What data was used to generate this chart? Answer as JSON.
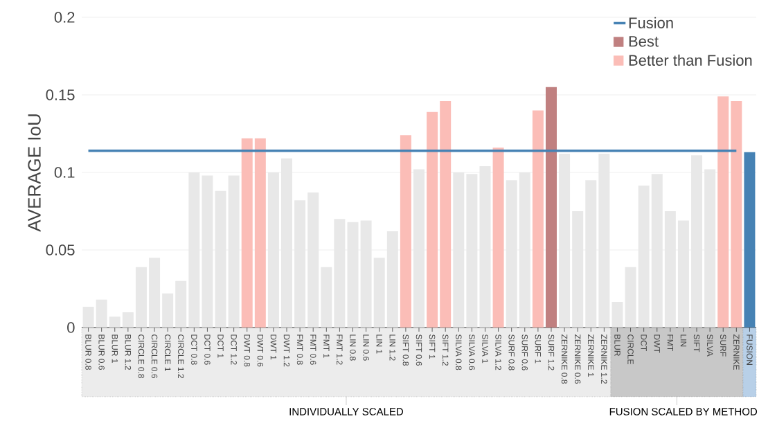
{
  "chart_data": {
    "type": "bar",
    "ylabel": "AVERAGE IoU",
    "categories": [
      "BLUR 0.8",
      "BLUR 0.6",
      "BLUR 1",
      "BLUR 1.2",
      "CIRCLE 0.8",
      "CIRCLE 0.6",
      "CIRCLE 1",
      "CIRCLE 1.2",
      "DCT 0.8",
      "DCT 0.6",
      "DCT 1",
      "DCT 1.2",
      "DWT 0.8",
      "DWT 0.6",
      "DWT 1",
      "DWT 1.2",
      "FMT 0.8",
      "FMT 0.6",
      "FMT 1",
      "FMT 1.2",
      "LIN 0.8",
      "LIN 0.6",
      "LIN 1",
      "LIN 1.2",
      "SIFT 0.8",
      "SIFT 0.6",
      "SIFT 1",
      "SIFT 1.2",
      "SILVA 0.8",
      "SILVA 0.6",
      "SILVA 1",
      "SILVA 1.2",
      "SURF 0.8",
      "SURF 0.6",
      "SURF 1",
      "SURF 1.2",
      "ZERNIKE 0.8",
      "ZERNIKE 0.6",
      "ZERNIKE 1",
      "ZERNIKE 1.2",
      "BLUR",
      "CIRCLE",
      "DCT",
      "DWT",
      "FMT",
      "LIN",
      "SIFT",
      "SILVA",
      "SURF",
      "ZERNIKE",
      "FUSION"
    ],
    "series": [
      {
        "name": "Fusion",
        "type": "line",
        "color": "#4682b4",
        "values": [
          0.114,
          0.114,
          0.114,
          0.114,
          0.114,
          0.114,
          0.114,
          0.114,
          0.114,
          0.114,
          0.114,
          0.114,
          0.114,
          0.114,
          0.114,
          0.114,
          0.114,
          0.114,
          0.114,
          0.114,
          0.114,
          0.114,
          0.114,
          0.114,
          0.114,
          0.114,
          0.114,
          0.114,
          0.114,
          0.114,
          0.114,
          0.114,
          0.114,
          0.114,
          0.114,
          0.114,
          0.114,
          0.114,
          0.114,
          0.114,
          0.114,
          0.114,
          0.114,
          0.114,
          0.114,
          0.114,
          0.114,
          0.114,
          0.114,
          0.114,
          null
        ]
      },
      {
        "name": "Best",
        "color": "#c08080",
        "values": [
          null,
          null,
          null,
          null,
          null,
          null,
          null,
          null,
          null,
          null,
          null,
          null,
          null,
          null,
          null,
          null,
          null,
          null,
          null,
          null,
          null,
          null,
          null,
          null,
          null,
          null,
          null,
          null,
          null,
          null,
          null,
          null,
          null,
          null,
          null,
          0.155,
          null,
          null,
          null,
          null,
          null,
          null,
          null,
          null,
          null,
          null,
          null,
          null,
          null,
          null,
          null
        ]
      },
      {
        "name": "Better than Fusion",
        "color": "#fbbdb7",
        "values": [
          null,
          null,
          null,
          null,
          null,
          null,
          null,
          null,
          null,
          null,
          null,
          null,
          0.122,
          0.122,
          null,
          null,
          null,
          null,
          null,
          null,
          null,
          null,
          null,
          null,
          0.124,
          null,
          0.139,
          0.146,
          null,
          null,
          null,
          0.116,
          null,
          null,
          0.14,
          null,
          null,
          null,
          null,
          null,
          null,
          null,
          null,
          null,
          null,
          null,
          null,
          null,
          0.149,
          0.146,
          null
        ]
      },
      {
        "color": "#e8e8e8",
        "values": [
          0.0134,
          0.018,
          0.007,
          0.0098,
          0.039,
          0.045,
          0.022,
          0.03,
          0.1,
          0.098,
          0.088,
          0.098,
          null,
          null,
          0.1,
          0.109,
          0.082,
          0.087,
          0.039,
          0.07,
          0.068,
          0.069,
          0.045,
          0.062,
          null,
          0.102,
          null,
          null,
          0.1,
          0.099,
          0.104,
          null,
          0.095,
          0.1,
          null,
          null,
          0.112,
          0.075,
          0.095,
          0.112,
          0.0165,
          0.039,
          0.0915,
          0.099,
          0.075,
          0.069,
          0.111,
          0.102,
          null,
          null,
          null
        ]
      },
      {
        "color": "#4682b4",
        "values": [
          null,
          null,
          null,
          null,
          null,
          null,
          null,
          null,
          null,
          null,
          null,
          null,
          null,
          null,
          null,
          null,
          null,
          null,
          null,
          null,
          null,
          null,
          null,
          null,
          null,
          null,
          null,
          null,
          null,
          null,
          null,
          null,
          null,
          null,
          null,
          null,
          null,
          null,
          null,
          null,
          null,
          null,
          null,
          null,
          null,
          null,
          null,
          null,
          null,
          null,
          0.113
        ]
      }
    ],
    "ylim": [
      0,
      0.2
    ],
    "yticks": [
      0,
      0.05,
      0.1,
      0.15,
      0.2
    ],
    "grid": "y",
    "legend": "top right",
    "annotations": [
      "INDIVIDUALLY SCALED",
      "FUSION SCALED BY METHOD"
    ]
  }
}
